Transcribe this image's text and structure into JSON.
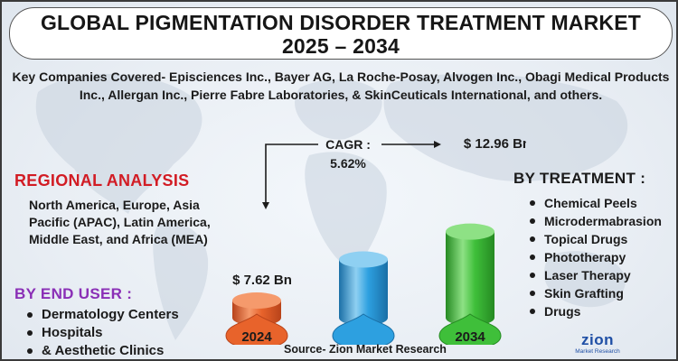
{
  "title": {
    "line1": "GLOBAL  PIGMENTATION DISORDER TREATMENT MARKET",
    "line2": "2025 – 2034"
  },
  "companies": "Key Companies Covered- Episciences Inc., Bayer AG, La Roche-Posay, Alvogen Inc., Obagi Medical Products Inc., Allergan Inc., Pierre Fabre Laboratories, & SkinCeuticals International, and others.",
  "regional": {
    "heading": "REGIONAL ANALYSIS",
    "text": "North America, Europe, Asia Pacific (APAC), Latin America, Middle East, and Africa (MEA)"
  },
  "end_user": {
    "heading": "BY END USER :",
    "items": [
      "Dermatology Centers",
      "Hospitals",
      "& Aesthetic Clinics"
    ]
  },
  "treatment": {
    "heading": "BY TREATMENT :",
    "items": [
      "Chemical Peels",
      "Microdermabrasion",
      "Topical Drugs",
      "Phototherapy",
      "Laser Therapy",
      "Skin Grafting",
      "Drugs"
    ]
  },
  "source": "Source- Zion Market Research",
  "logo": {
    "main": "zion",
    "sub": "Market Research"
  },
  "colors": {
    "bar_2024": "#e8632b",
    "bar_mid": "#2da0e0",
    "bar_2034": "#3fbf3a",
    "regional_heading": "#d21c24",
    "end_user_heading": "#8a2fb6",
    "logo": "#1f4fa5"
  },
  "chart_data": {
    "type": "bar",
    "categories": [
      "2024",
      "",
      "2034"
    ],
    "values": [
      7.62,
      null,
      12.96
    ],
    "value_labels": [
      "$ 7.62 Bn",
      "",
      "$ 12.96 Bn"
    ],
    "cagr_label": "CAGR :",
    "cagr_value": "5.62%",
    "decorative_mid_bar_level": 10.8,
    "ylim": [
      0,
      14
    ]
  }
}
